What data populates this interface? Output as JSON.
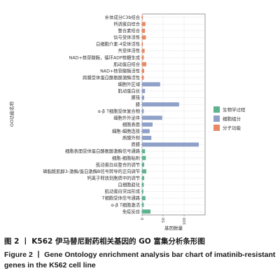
{
  "chart_data": {
    "type": "bar",
    "orientation": "horizontal",
    "xlabel": "基因数量",
    "ylabel": "GO功能名称",
    "xlim": [
      0,
      150
    ],
    "x_ticks": [
      0,
      50,
      100
    ],
    "grid": true,
    "legend_position": "right",
    "legend": [
      {
        "name": "生物学过程",
        "color": "#5fb38f"
      },
      {
        "name": "细胞组分",
        "color": "#8fa1c9"
      },
      {
        "name": "分子功能",
        "color": "#ea8865"
      }
    ],
    "categories": [
      {
        "label": "补体成分C3b结合",
        "value": 2,
        "group": 2
      },
      {
        "label": "钙调蛋白结合",
        "value": 8,
        "group": 2
      },
      {
        "label": "整合素结合",
        "value": 7,
        "group": 2
      },
      {
        "label": "信号受体活性",
        "value": 9,
        "group": 2
      },
      {
        "label": "白细胞介素-4受体活性",
        "value": 2,
        "group": 2
      },
      {
        "label": "共受体活性",
        "value": 6,
        "group": 2
      },
      {
        "label": "NAD+核苷酸酶，循环ADP核糖生成",
        "value": 4,
        "group": 2
      },
      {
        "label": "肌动蛋白结合",
        "value": 10,
        "group": 2
      },
      {
        "label": "NAD+核苷酸酶活性",
        "value": 5,
        "group": 2
      },
      {
        "label": "跨膜受体蛋白酪氨酸激酶活性",
        "value": 4,
        "group": 2
      },
      {
        "label": "细胞外区域",
        "value": 43,
        "group": 1
      },
      {
        "label": "肌动蛋白丝",
        "value": 7,
        "group": 1
      },
      {
        "label": "膜筏",
        "value": 5,
        "group": 1
      },
      {
        "label": "膜",
        "value": 88,
        "group": 1
      },
      {
        "label": "α-β T细胞受体复合物",
        "value": 4,
        "group": 1
      },
      {
        "label": "细胞外外泌体",
        "value": 48,
        "group": 1
      },
      {
        "label": "细胞表面",
        "value": 25,
        "group": 1
      },
      {
        "label": "细胞-细胞连接",
        "value": 18,
        "group": 1
      },
      {
        "label": "质膜外侧",
        "value": 22,
        "group": 1
      },
      {
        "label": "质膜",
        "value": 135,
        "group": 1
      },
      {
        "label": "细胞表面受体蛋白酪氨酸激酶信号通路",
        "value": 7,
        "group": 0
      },
      {
        "label": "细胞-细胞粘附",
        "value": 9,
        "group": 0
      },
      {
        "label": "肌动蛋白丝整合的调节",
        "value": 5,
        "group": 0
      },
      {
        "label": "磷脂酰肌醇3-激酶/蛋白激酶B信号转导的正向调节",
        "value": 10,
        "group": 0
      },
      {
        "label": "钙离子释放到胞质中的调节",
        "value": 5,
        "group": 0
      },
      {
        "label": "白细胞趋化",
        "value": 4,
        "group": 0
      },
      {
        "label": "肌动蛋白突出形成",
        "value": 3,
        "group": 0
      },
      {
        "label": "T细胞受体信号通路",
        "value": 8,
        "group": 0
      },
      {
        "label": "α-β T细胞激活",
        "value": 4,
        "group": 0
      },
      {
        "label": "免疫反应",
        "value": 20,
        "group": 0
      }
    ]
  },
  "caption": {
    "zh": "图 2 丨 K562 伊马替尼耐药相关基因的 GO 富集分析条形图",
    "en": "Figure 2 丨 Gene Ontology enrichment analysis bar chart of imatinib-resistant genes in the K562 cell line"
  }
}
